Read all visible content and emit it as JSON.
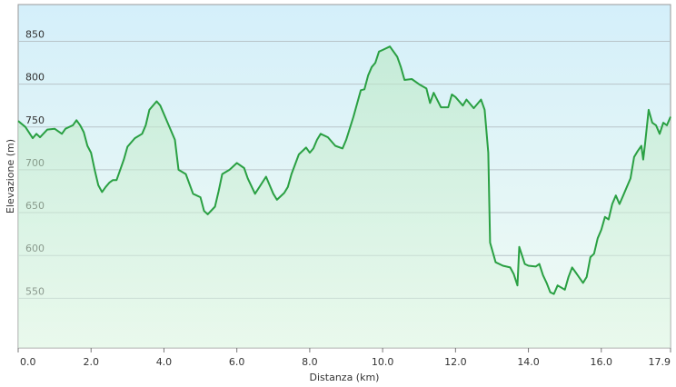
{
  "chart_data": {
    "type": "area",
    "x_label": "Distanza  (km)",
    "y_label": "Elevazione (m)",
    "color": "#2aa043",
    "xlim": [
      0,
      17.9
    ],
    "ylim": [
      492,
      893
    ],
    "xticks": [
      {
        "value": 0,
        "label": "0.0"
      },
      {
        "value": 2,
        "label": "2.0"
      },
      {
        "value": 4,
        "label": "4.0"
      },
      {
        "value": 6,
        "label": "6.0"
      },
      {
        "value": 8,
        "label": "8.0"
      },
      {
        "value": 10,
        "label": "10.0"
      },
      {
        "value": 12,
        "label": "12.0"
      },
      {
        "value": 14,
        "label": "14.0"
      },
      {
        "value": 16,
        "label": "16.0"
      },
      17.9
    ],
    "yticks": [
      550,
      600,
      650,
      700,
      750,
      800,
      850
    ],
    "grid": true,
    "x": [
      0.0,
      0.2,
      0.4,
      0.5,
      0.6,
      0.8,
      1.0,
      1.2,
      1.3,
      1.5,
      1.6,
      1.7,
      1.8,
      1.9,
      2.0,
      2.1,
      2.2,
      2.3,
      2.4,
      2.5,
      2.6,
      2.7,
      2.8,
      2.9,
      3.0,
      3.2,
      3.4,
      3.5,
      3.6,
      3.8,
      3.9,
      4.1,
      4.3,
      4.4,
      4.6,
      4.8,
      5.0,
      5.1,
      5.2,
      5.4,
      5.5,
      5.6,
      5.8,
      6.0,
      6.2,
      6.3,
      6.5,
      6.8,
      7.0,
      7.1,
      7.3,
      7.4,
      7.5,
      7.7,
      7.9,
      8.0,
      8.1,
      8.2,
      8.3,
      8.5,
      8.7,
      8.9,
      9.0,
      9.2,
      9.4,
      9.5,
      9.6,
      9.7,
      9.8,
      9.9,
      10.0,
      10.2,
      10.4,
      10.5,
      10.6,
      10.8,
      11.0,
      11.2,
      11.3,
      11.4,
      11.6,
      11.8,
      11.9,
      12.0,
      12.2,
      12.3,
      12.5,
      12.7,
      12.8,
      12.9,
      12.95,
      13.1,
      13.3,
      13.5,
      13.6,
      13.7,
      13.75,
      13.9,
      14.0,
      14.2,
      14.3,
      14.4,
      14.5,
      14.6,
      14.7,
      14.8,
      15.0,
      15.1,
      15.2,
      15.3,
      15.5,
      15.6,
      15.7,
      15.8,
      15.9,
      16.0,
      16.1,
      16.2,
      16.3,
      16.4,
      16.5,
      16.6,
      16.8,
      16.9,
      17.0,
      17.1,
      17.15,
      17.2,
      17.3,
      17.4,
      17.5,
      17.6,
      17.7,
      17.8,
      17.9
    ],
    "series": [
      {
        "name": "Elevazione",
        "values": [
          757,
          750,
          737,
          742,
          738,
          747,
          748,
          742,
          748,
          752,
          758,
          752,
          744,
          728,
          720,
          700,
          682,
          674,
          680,
          685,
          688,
          688,
          700,
          712,
          727,
          737,
          742,
          752,
          770,
          780,
          775,
          755,
          735,
          700,
          695,
          672,
          668,
          652,
          648,
          657,
          675,
          695,
          700,
          708,
          702,
          690,
          672,
          692,
          672,
          665,
          673,
          680,
          695,
          718,
          726,
          720,
          725,
          735,
          742,
          738,
          728,
          725,
          735,
          762,
          793,
          794,
          810,
          820,
          825,
          838,
          840,
          844,
          832,
          820,
          805,
          806,
          800,
          795,
          778,
          790,
          773,
          773,
          788,
          785,
          775,
          782,
          772,
          782,
          770,
          720,
          615,
          592,
          588,
          586,
          578,
          565,
          610,
          590,
          588,
          587,
          590,
          577,
          568,
          557,
          555,
          565,
          560,
          575,
          586,
          580,
          568,
          575,
          598,
          602,
          620,
          630,
          645,
          642,
          660,
          670,
          660,
          670,
          690,
          715,
          722,
          728,
          712,
          730,
          770,
          755,
          752,
          742,
          755,
          752,
          762
        ]
      }
    ]
  }
}
